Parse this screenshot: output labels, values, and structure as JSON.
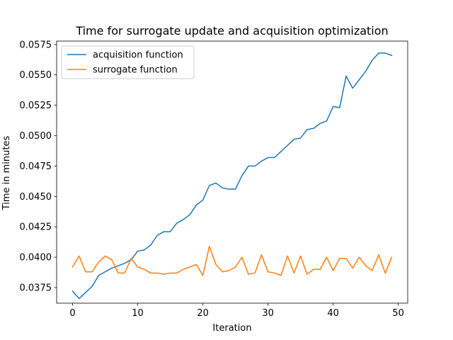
{
  "chart_data": {
    "type": "line",
    "title": "Time for surrogate update and acquisition optimization",
    "xlabel": "Iteration",
    "ylabel": "Time in minutes",
    "xlim": [
      -2.45,
      51.45
    ],
    "ylim": [
      0.03622,
      0.05778
    ],
    "x_ticks": [
      0,
      10,
      20,
      30,
      40,
      50
    ],
    "x_tick_labels": [
      "0",
      "10",
      "20",
      "30",
      "40",
      "50"
    ],
    "y_ticks": [
      0.0375,
      0.04,
      0.0425,
      0.045,
      0.0475,
      0.05,
      0.0525,
      0.055,
      0.0575
    ],
    "y_tick_labels": [
      "0.0375",
      "0.0400",
      "0.0425",
      "0.0450",
      "0.0475",
      "0.0500",
      "0.0525",
      "0.0550",
      "0.0575"
    ],
    "grid": false,
    "legend_position": "top-left",
    "x": [
      0,
      1,
      2,
      3,
      4,
      5,
      6,
      7,
      8,
      9,
      10,
      11,
      12,
      13,
      14,
      15,
      16,
      17,
      18,
      19,
      20,
      21,
      22,
      23,
      24,
      25,
      26,
      27,
      28,
      29,
      30,
      31,
      32,
      33,
      34,
      35,
      36,
      37,
      38,
      39,
      40,
      41,
      42,
      43,
      44,
      45,
      46,
      47,
      48,
      49
    ],
    "series": [
      {
        "name": "acquisition function",
        "color": "#1f77b4",
        "values": [
          0.0372,
          0.0366,
          0.0371,
          0.0376,
          0.0385,
          0.0388,
          0.0391,
          0.0393,
          0.0395,
          0.0398,
          0.0405,
          0.0406,
          0.041,
          0.0418,
          0.0421,
          0.0421,
          0.0428,
          0.0431,
          0.0435,
          0.0443,
          0.0447,
          0.0459,
          0.0461,
          0.0457,
          0.0456,
          0.0456,
          0.0467,
          0.0475,
          0.0475,
          0.0479,
          0.0482,
          0.0482,
          0.0487,
          0.0492,
          0.0497,
          0.0498,
          0.0505,
          0.0506,
          0.051,
          0.0512,
          0.0524,
          0.0523,
          0.0549,
          0.0539,
          0.0546,
          0.0553,
          0.0562,
          0.0568,
          0.0568,
          0.0566
        ]
      },
      {
        "name": "surrogate function",
        "color": "#ff7f0e",
        "values": [
          0.0392,
          0.0401,
          0.0388,
          0.0388,
          0.0396,
          0.0401,
          0.0398,
          0.0387,
          0.0387,
          0.0399,
          0.0392,
          0.039,
          0.0387,
          0.0387,
          0.0386,
          0.0387,
          0.0387,
          0.039,
          0.0392,
          0.0394,
          0.0385,
          0.0409,
          0.0394,
          0.0388,
          0.0389,
          0.0392,
          0.04,
          0.0386,
          0.0387,
          0.0402,
          0.0388,
          0.0387,
          0.0385,
          0.0401,
          0.0387,
          0.0401,
          0.0386,
          0.039,
          0.039,
          0.04,
          0.0389,
          0.0399,
          0.0399,
          0.0391,
          0.04,
          0.0393,
          0.0389,
          0.0402,
          0.0387,
          0.04
        ]
      }
    ]
  }
}
